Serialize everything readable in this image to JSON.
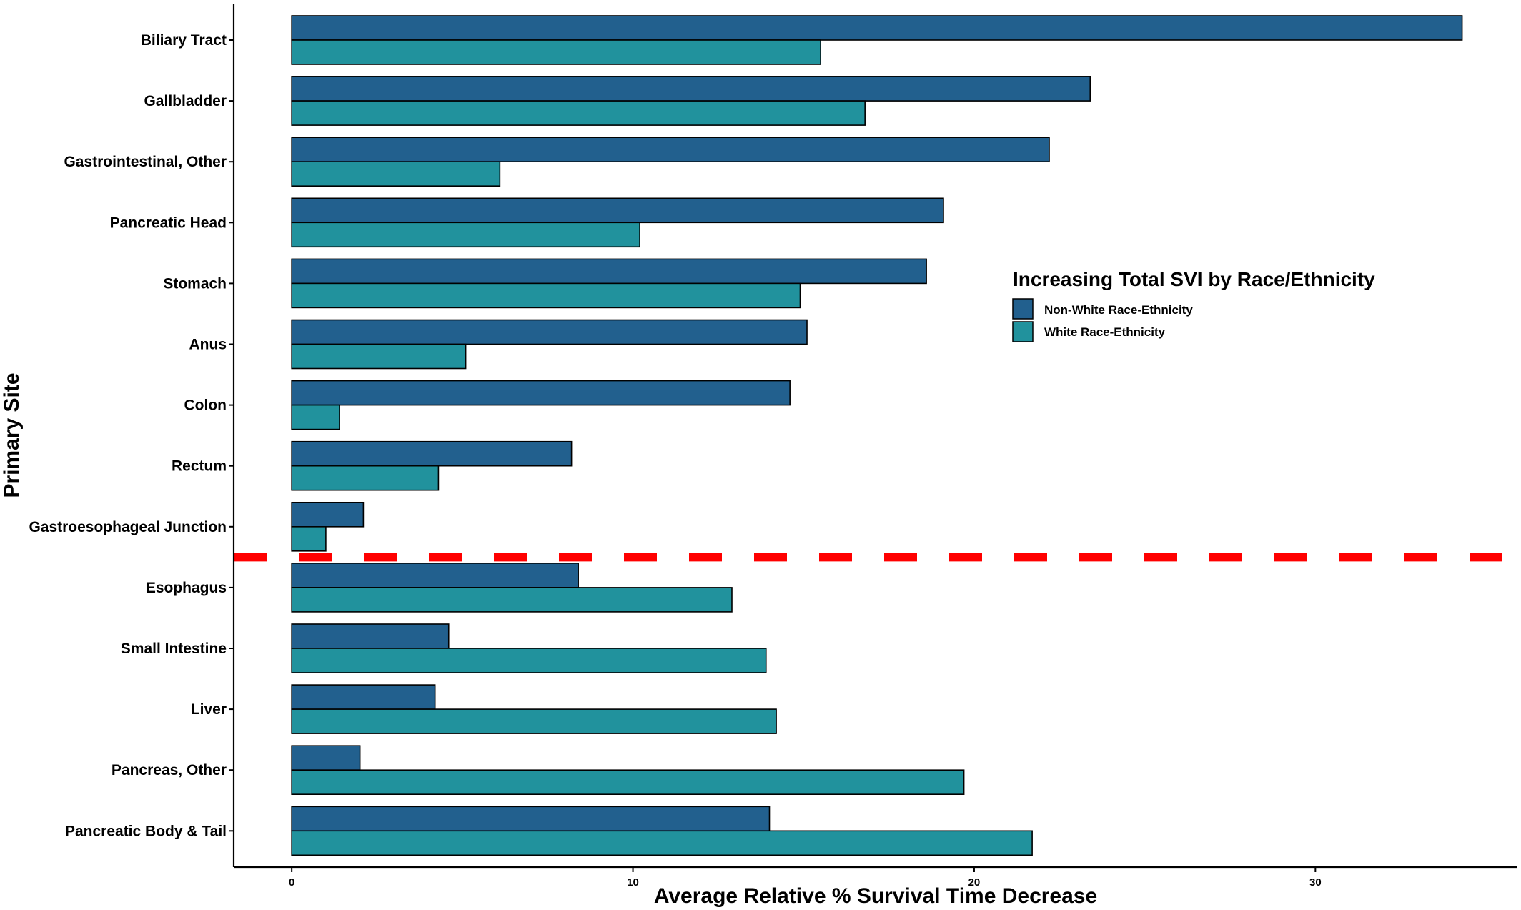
{
  "chart_data": {
    "type": "bar",
    "orientation": "horizontal",
    "categories": [
      "Biliary Tract",
      "Gallbladder",
      "Gastrointestinal, Other",
      "Pancreatic Head",
      "Stomach",
      "Anus",
      "Colon",
      "Rectum",
      "Gastroesophageal Junction",
      "Esophagus",
      "Small Intestine",
      "Liver",
      "Pancreas, Other",
      "Pancreatic Body & Tail"
    ],
    "series": [
      {
        "name": "Non-White Race-Ethnicity",
        "color": "#22608e",
        "values": [
          34.3,
          23.4,
          22.2,
          19.1,
          18.6,
          15.1,
          14.6,
          8.2,
          2.1,
          8.4,
          4.6,
          4.2,
          2.0,
          14.0
        ]
      },
      {
        "name": "White Race-Ethnicity",
        "color": "#21929d",
        "values": [
          15.5,
          16.8,
          6.1,
          10.2,
          14.9,
          5.1,
          1.4,
          4.3,
          1.0,
          12.9,
          13.9,
          14.2,
          19.7,
          21.7
        ]
      }
    ],
    "xlabel": "Average Relative % Survival Time Decrease",
    "ylabel": "Primary Site",
    "x_ticks": [
      "0",
      "10",
      "20",
      "30"
    ],
    "xlim": [
      -1.7,
      35.9
    ],
    "legend": {
      "title": "Increasing Total SVI by Race/Ethnicity",
      "placement": "right-center"
    },
    "reference_line": {
      "style": "dashed",
      "color": "#ff0000",
      "between": [
        "Gastroesophageal Junction",
        "Esophagus"
      ]
    },
    "grid": false
  }
}
